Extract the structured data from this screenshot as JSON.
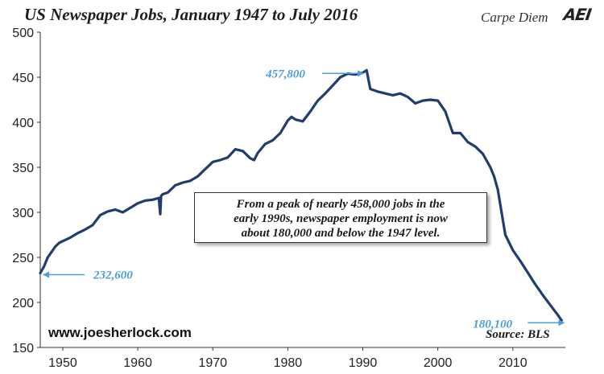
{
  "header": {
    "title": "US Newspaper Jobs, January 1947 to July 2016",
    "brand": "Carpe Diem",
    "logo_text": "AEI"
  },
  "annotation": {
    "line1": "From a peak of nearly 458,000 jobs in the",
    "line2": "early 1990s, newspaper employment is now",
    "line3": "about 180,000 and below the 1947 level."
  },
  "footer": {
    "website": "www.joesherlock.com",
    "source": "Source: BLS"
  },
  "colors": {
    "line": "#1f3d6e",
    "callout": "#4b9fd6",
    "axis": "#333333"
  },
  "chart_data": {
    "type": "line",
    "title": "US Newspaper Jobs, January 1947 to July 2016",
    "xlabel": "",
    "ylabel": "",
    "xlim": [
      1947,
      2017
    ],
    "ylim": [
      150,
      500
    ],
    "y_ticks": [
      150,
      200,
      250,
      300,
      350,
      400,
      450,
      500
    ],
    "x_ticks": [
      1950,
      1960,
      1970,
      1980,
      1990,
      2000,
      2010
    ],
    "grid": false,
    "series": [
      {
        "x": [
          1947.0,
          1947.5,
          1948.0,
          1948.5,
          1949.0,
          1949.5,
          1950.0,
          1951.0,
          1952.0,
          1953.0,
          1954.0,
          1955.0,
          1956.0,
          1957.0,
          1958.0,
          1959.0,
          1960.0,
          1961.0,
          1962.0,
          1962.8,
          1963.0,
          1963.1,
          1963.3,
          1964.0,
          1965.0,
          1966.0,
          1967.0,
          1968.0,
          1969.0,
          1970.0,
          1971.0,
          1972.0,
          1973.0,
          1974.0,
          1975.0,
          1975.5,
          1976.0,
          1977.0,
          1978.0,
          1979.0,
          1980.0,
          1980.5,
          1981.0,
          1982.0,
          1983.0,
          1984.0,
          1985.0,
          1986.0,
          1987.0,
          1988.0,
          1989.0,
          1990.0,
          1990.5,
          1991.0,
          1992.0,
          1993.0,
          1994.0,
          1995.0,
          1996.0,
          1997.0,
          1998.0,
          1999.0,
          2000.0,
          2001.0,
          2002.0,
          2003.0,
          2004.0,
          2005.0,
          2006.0,
          2007.0,
          2007.5,
          2008.0,
          2008.5,
          2009.0,
          2010.0,
          2011.0,
          2012.0,
          2013.0,
          2014.0,
          2015.0,
          2016.0,
          2016.5
        ],
        "values": [
          232.6,
          240,
          250,
          256,
          262,
          266,
          268,
          272,
          277,
          281,
          286,
          297,
          301,
          303,
          300,
          305,
          310,
          313,
          314,
          316,
          298,
          318,
          320,
          322,
          330,
          333,
          335,
          340,
          348,
          356,
          358,
          361,
          370,
          368,
          360,
          358,
          366,
          376,
          380,
          388,
          402,
          406,
          403,
          401,
          412,
          424,
          432,
          441,
          450,
          454,
          453,
          455,
          457.8,
          437,
          434,
          432,
          430,
          432,
          428,
          421,
          424,
          425,
          424,
          412,
          388,
          388,
          378,
          373,
          365,
          350,
          340,
          325,
          300,
          275,
          258,
          246,
          233,
          220,
          208,
          197,
          186,
          180.1
        ]
      }
    ],
    "annotations": [
      {
        "label": "457,800",
        "x": 1990.5,
        "y": 457.8
      },
      {
        "label": "232,600",
        "x": 1947.0,
        "y": 232.6
      },
      {
        "label": "180,100",
        "x": 2016.5,
        "y": 180.1
      }
    ]
  }
}
